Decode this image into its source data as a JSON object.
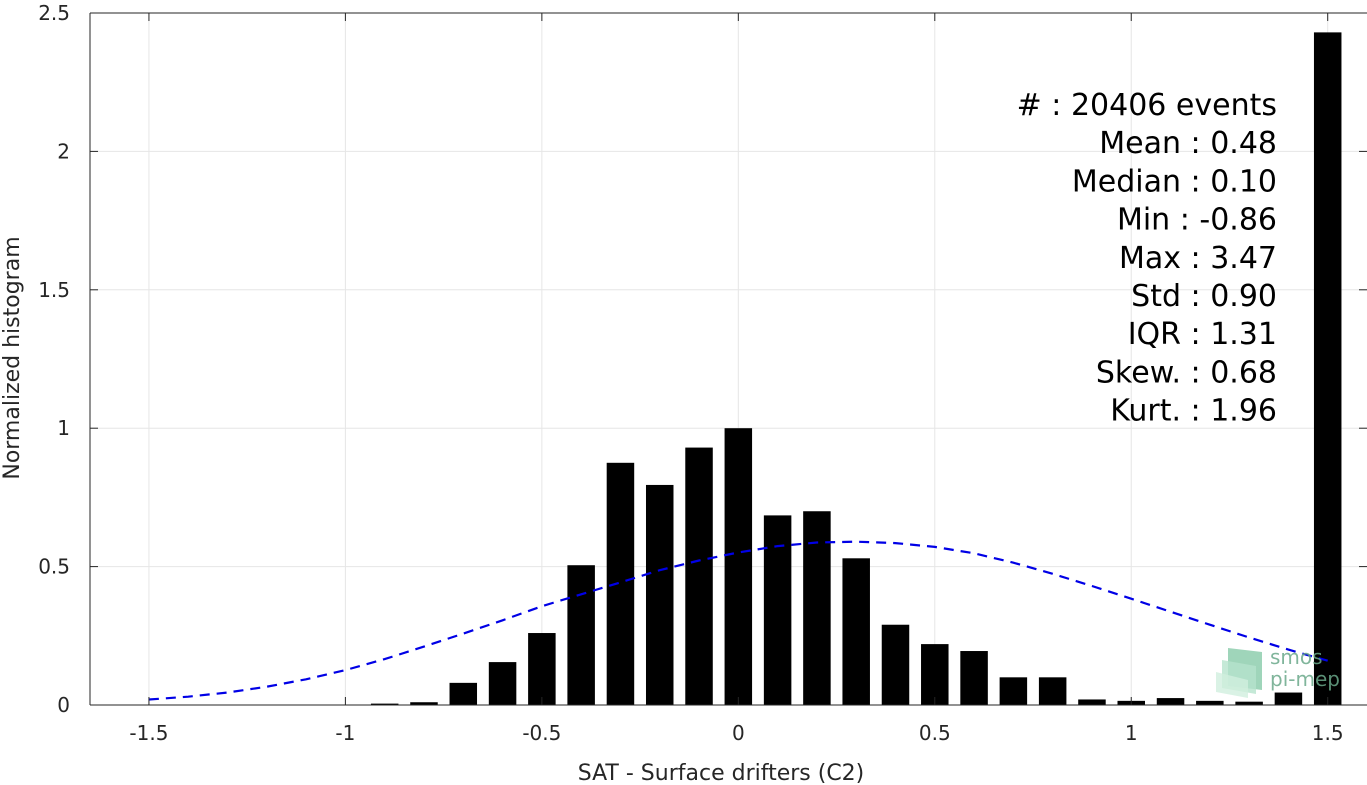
{
  "colors": {
    "bar": "#000000",
    "fit": "#0000e6",
    "grid": "#e6e6e6",
    "axis": "#262626",
    "logo": "#6aa98a"
  },
  "stats": {
    "lines": [
      "#  : 20406 events",
      "Mean : 0.48",
      "Median : 0.10",
      "Min : -0.86",
      "Max : 3.47",
      "Std : 0.90",
      "IQR : 1.31",
      "Skew. : 0.68",
      "Kurt. : 1.96"
    ]
  },
  "logo": {
    "line1": "smos",
    "line2": "pi-mep",
    "icon": "waves-logo-icon"
  },
  "chart_data": {
    "type": "bar",
    "xlabel": "SAT - Surface drifters (C2)",
    "ylabel": "Normalized histogram",
    "xlim": [
      -1.65,
      1.6
    ],
    "ylim": [
      0,
      2.5
    ],
    "xticks": [
      -1.5,
      -1,
      -0.5,
      0,
      0.5,
      1,
      1.5
    ],
    "xtick_labels": [
      "-1.5",
      "-1",
      "-0.5",
      "0",
      "0.5",
      "1",
      "1.5"
    ],
    "yticks": [
      0,
      0.5,
      1,
      1.5,
      2,
      2.5
    ],
    "ytick_labels": [
      "0",
      "0.5",
      "1",
      "1.5",
      "2",
      "2.5"
    ],
    "grid": true,
    "bar_width": 0.07,
    "series": [
      {
        "type": "bar",
        "x": [
          -0.9,
          -0.8,
          -0.7,
          -0.6,
          -0.5,
          -0.4,
          -0.3,
          -0.2,
          -0.1,
          0.0,
          0.1,
          0.2,
          0.3,
          0.4,
          0.5,
          0.6,
          0.7,
          0.8,
          0.9,
          1.0,
          1.1,
          1.2,
          1.3,
          1.4,
          1.5
        ],
        "values": [
          0.005,
          0.01,
          0.08,
          0.155,
          0.26,
          0.505,
          0.875,
          0.795,
          0.93,
          1.0,
          0.685,
          0.7,
          0.53,
          0.29,
          0.22,
          0.195,
          0.1,
          0.1,
          0.02,
          0.015,
          0.025,
          0.015,
          0.012,
          0.045,
          2.43
        ]
      },
      {
        "type": "line",
        "style": "dashed",
        "x": [
          -1.5,
          -1.4,
          -1.3,
          -1.2,
          -1.1,
          -1.0,
          -0.9,
          -0.8,
          -0.7,
          -0.6,
          -0.5,
          -0.4,
          -0.3,
          -0.2,
          -0.1,
          0.0,
          0.1,
          0.2,
          0.3,
          0.4,
          0.5,
          0.6,
          0.7,
          0.8,
          0.9,
          1.0,
          1.1,
          1.2,
          1.3,
          1.4,
          1.5
        ],
        "values": [
          0.02,
          0.03,
          0.045,
          0.066,
          0.093,
          0.126,
          0.166,
          0.211,
          0.258,
          0.306,
          0.357,
          0.4,
          0.443,
          0.487,
          0.522,
          0.551,
          0.574,
          0.587,
          0.59,
          0.585,
          0.571,
          0.548,
          0.514,
          0.474,
          0.43,
          0.384,
          0.337,
          0.29,
          0.244,
          0.2,
          0.16
        ]
      }
    ]
  }
}
